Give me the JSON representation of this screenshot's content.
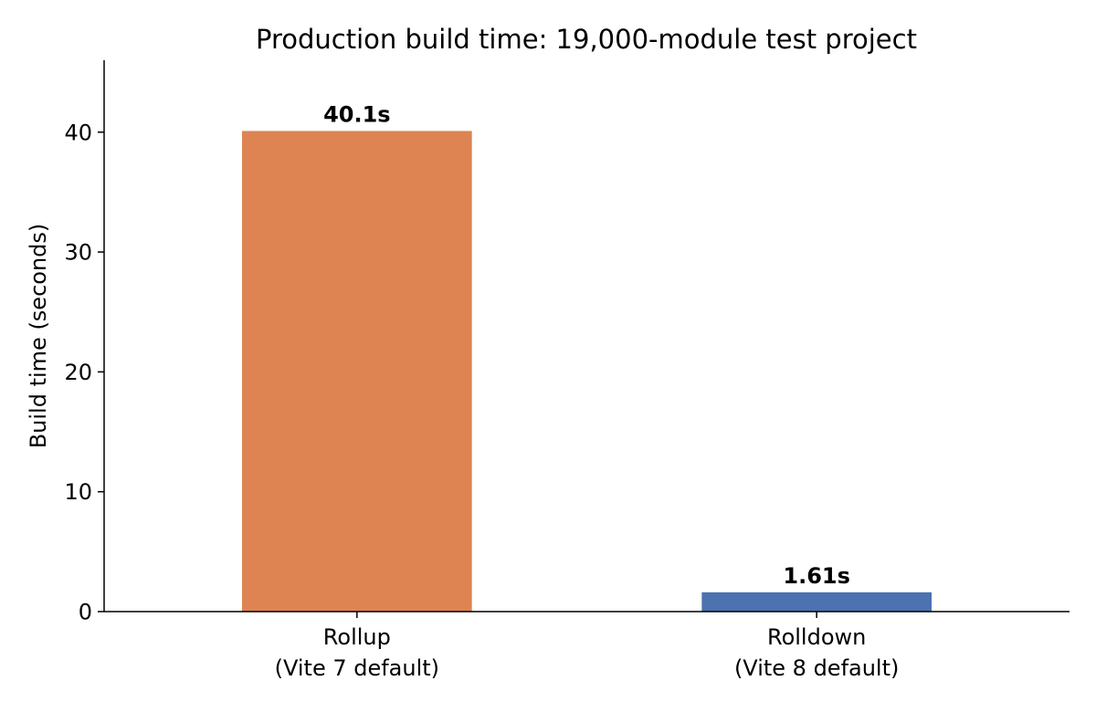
{
  "chart_data": {
    "type": "bar",
    "title": "Production build time: 19,000-module test project",
    "xlabel": "",
    "ylabel": "Build time (seconds)",
    "ylim": [
      0,
      46
    ],
    "yticks": [
      0,
      10,
      20,
      30,
      40
    ],
    "grid": false,
    "categories": [
      [
        "Rollup",
        "(Vite 7 default)"
      ],
      [
        "Rolldown",
        "(Vite 8 default)"
      ]
    ],
    "values": [
      40.1,
      1.61
    ],
    "data_labels": [
      "40.1s",
      "1.61s"
    ],
    "colors": [
      "#dd8452",
      "#4c72b0"
    ]
  }
}
